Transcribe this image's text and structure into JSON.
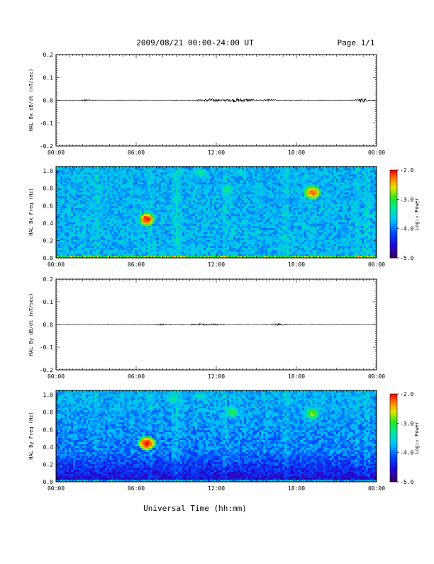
{
  "header": {
    "title": "2009/08/21  00:00-24:00 UT",
    "page": "Page 1/1"
  },
  "x_axis": {
    "label": "Universal Time (hh:mm)",
    "tick_labels": [
      "00:00",
      "06:00",
      "12:00",
      "18:00",
      "00:00"
    ]
  },
  "colorbar": {
    "label": "Log₁₀ Power",
    "tick_labels": [
      "-2.0",
      "-3.0",
      "-4.0",
      "-5.0"
    ],
    "range": [
      -5.0,
      -2.0
    ]
  },
  "chart_data": [
    {
      "type": "line",
      "ylabel": "HAL Bx dB/dt (nT/sec)",
      "ylim": [
        -0.2,
        0.2
      ],
      "y_tick_labels": [
        "0.2",
        "0.1",
        "0.0",
        "-0.1",
        "-0.2"
      ],
      "x_range_hours": [
        0,
        24
      ],
      "bursts": [
        {
          "center_hour": 2.2,
          "width_hours": 0.4,
          "amplitude": 0.004
        },
        {
          "center_hour": 11.5,
          "width_hours": 1.2,
          "amplitude": 0.006
        },
        {
          "center_hour": 13.8,
          "width_hours": 1.4,
          "amplitude": 0.008
        },
        {
          "center_hour": 16.0,
          "width_hours": 0.6,
          "amplitude": 0.004
        },
        {
          "center_hour": 22.9,
          "width_hours": 0.6,
          "amplitude": 0.009
        }
      ],
      "baseline_noise": 0.0015
    },
    {
      "type": "heatmap",
      "ylabel": "HAL Bx Freq (Hz)",
      "ylim": [
        0.0,
        1.05
      ],
      "y_tick_labels": [
        "1.0",
        "0.8",
        "0.6",
        "0.4",
        "0.2",
        "0.0"
      ],
      "value_range": [
        -5.0,
        -2.0
      ],
      "hotspots": [
        {
          "hour": 6.8,
          "freq": 0.44,
          "power": -2.0,
          "radius_h": 0.35,
          "radius_f": 0.05
        },
        {
          "hour": 19.2,
          "freq": 0.75,
          "power": -2.2,
          "radius_h": 0.4,
          "radius_f": 0.05
        },
        {
          "hour": 12.8,
          "freq": 0.78,
          "power": -3.2,
          "radius_h": 0.4,
          "radius_f": 0.05
        },
        {
          "hour": 10.8,
          "freq": 0.98,
          "power": -3.2,
          "radius_h": 0.5,
          "radius_f": 0.04
        },
        {
          "hour": 13.8,
          "freq": 0.98,
          "power": -3.4,
          "radius_h": 0.5,
          "radius_f": 0.04
        }
      ]
    },
    {
      "type": "line",
      "ylabel": "HAL By dB/dt (nT/sec)",
      "ylim": [
        -0.2,
        0.2
      ],
      "y_tick_labels": [
        "0.2",
        "0.1",
        "0.0",
        "-0.1",
        "-0.2"
      ],
      "x_range_hours": [
        0,
        24
      ],
      "bursts": [
        {
          "center_hour": 11.2,
          "width_hours": 1.5,
          "amplitude": 0.003
        },
        {
          "center_hour": 16.7,
          "width_hours": 0.6,
          "amplitude": 0.004
        },
        {
          "center_hour": 8.0,
          "width_hours": 0.8,
          "amplitude": 0.002
        }
      ],
      "baseline_noise": 0.0012
    },
    {
      "type": "heatmap",
      "ylabel": "HAL By Freq (Hz)",
      "ylim": [
        0.0,
        1.05
      ],
      "y_tick_labels": [
        "1.0",
        "0.8",
        "0.6",
        "0.4",
        "0.2",
        "0.0"
      ],
      "value_range": [
        -5.0,
        -2.0
      ],
      "hotspots": [
        {
          "hour": 6.8,
          "freq": 0.44,
          "power": -2.0,
          "radius_h": 0.4,
          "radius_f": 0.05
        },
        {
          "hour": 19.2,
          "freq": 0.78,
          "power": -2.8,
          "radius_h": 0.4,
          "radius_f": 0.05
        },
        {
          "hour": 13.2,
          "freq": 0.8,
          "power": -3.0,
          "radius_h": 0.4,
          "radius_f": 0.05
        },
        {
          "hour": 8.8,
          "freq": 0.95,
          "power": -3.3,
          "radius_h": 0.5,
          "radius_f": 0.05
        },
        {
          "hour": 10.8,
          "freq": 0.98,
          "power": -3.3,
          "radius_h": 0.5,
          "radius_f": 0.04
        }
      ]
    }
  ]
}
